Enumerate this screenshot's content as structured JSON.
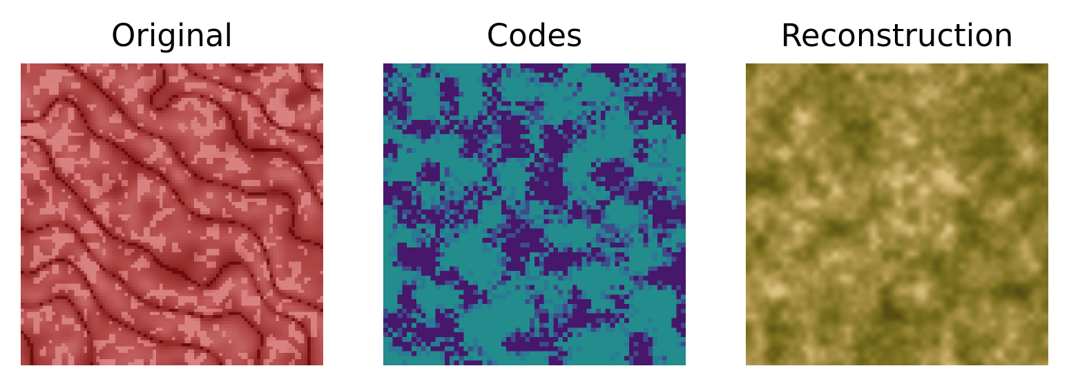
{
  "panels": [
    {
      "title": "Original",
      "image": "red-tinted tissue micrograph with elongated glandular structures",
      "colormap": [
        "#5c0000",
        "#8e2424",
        "#b44c4c",
        "#d98080"
      ]
    },
    {
      "title": "Codes",
      "image": "pixelated two-level code map",
      "colormap": [
        "#46176a",
        "#238c8c",
        "#2a7a95",
        "#3e4c8a"
      ]
    },
    {
      "title": "Reconstruction",
      "image": "blurry olive and tan textured reconstruction",
      "colormap": [
        "#4e4510",
        "#7a6e1e",
        "#a99147",
        "#dcc382"
      ]
    }
  ]
}
